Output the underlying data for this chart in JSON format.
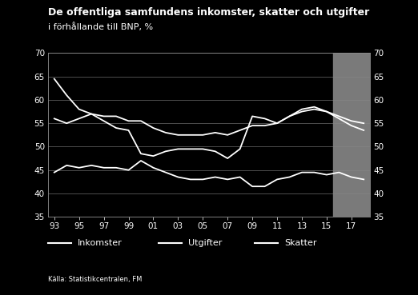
{
  "title_line1": "De offentliga samfundens inkomster, skatter och utgifter",
  "title_line2": "i förhållande till BNP, %",
  "source": "Källa: Statistikcentralen, FM",
  "background_color": "#000000",
  "text_color": "#ffffff",
  "line_color": "#ffffff",
  "forecast_color": "#7a7a7a",
  "forecast_start": 2016,
  "years": [
    1993,
    1994,
    1995,
    1996,
    1997,
    1998,
    1999,
    2000,
    2001,
    2002,
    2003,
    2004,
    2005,
    2006,
    2007,
    2008,
    2009,
    2010,
    2011,
    2012,
    2013,
    2014,
    2015,
    2016,
    2017,
    2018
  ],
  "inkomster": [
    64.5,
    61.0,
    58.0,
    57.0,
    56.5,
    56.5,
    55.5,
    55.5,
    54.0,
    53.0,
    52.5,
    52.5,
    52.5,
    53.0,
    52.5,
    53.5,
    54.5,
    54.5,
    55.0,
    56.5,
    58.0,
    58.5,
    57.5,
    56.5,
    55.5,
    55.0
  ],
  "utgifter": [
    56.0,
    55.0,
    56.0,
    57.0,
    55.5,
    54.0,
    53.5,
    48.5,
    48.0,
    49.0,
    49.5,
    49.5,
    49.5,
    49.0,
    47.5,
    49.5,
    56.5,
    56.0,
    55.0,
    56.5,
    57.5,
    58.0,
    57.5,
    56.0,
    54.5,
    53.5
  ],
  "skatter": [
    44.5,
    46.0,
    45.5,
    46.0,
    45.5,
    45.5,
    45.0,
    47.0,
    45.5,
    44.5,
    43.5,
    43.0,
    43.0,
    43.5,
    43.0,
    43.5,
    41.5,
    41.5,
    43.0,
    43.5,
    44.5,
    44.5,
    44.0,
    44.5,
    43.5,
    43.0
  ],
  "ylim": [
    35,
    70
  ],
  "yticks": [
    35,
    40,
    45,
    50,
    55,
    60,
    65,
    70
  ],
  "xtick_labels": [
    "93",
    "95",
    "97",
    "99",
    "01",
    "03",
    "05",
    "07",
    "09",
    "11",
    "13",
    "15",
    "17"
  ],
  "xtick_years": [
    1993,
    1995,
    1997,
    1999,
    2001,
    2003,
    2005,
    2007,
    2009,
    2011,
    2013,
    2015,
    2017
  ],
  "legend_items": [
    "Inkomster",
    "Utgifter",
    "Skatter"
  ]
}
